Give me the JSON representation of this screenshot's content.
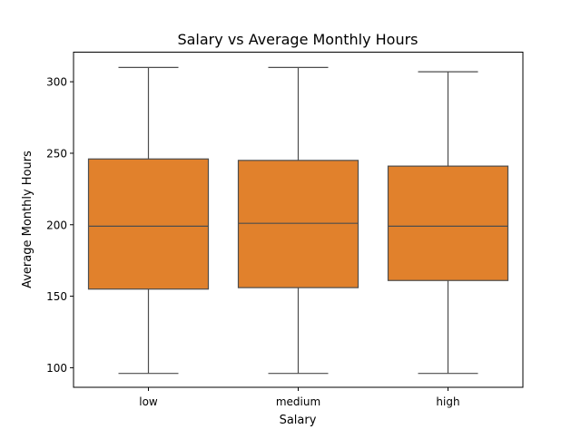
{
  "chart_data": {
    "type": "box",
    "title": "Salary vs Average Monthly Hours",
    "xlabel": "Salary",
    "ylabel": "Average Monthly Hours",
    "categories": [
      "low",
      "medium",
      "high"
    ],
    "ylim": [
      86.3,
      320.7
    ],
    "yticks": [
      100,
      150,
      200,
      250,
      300
    ],
    "grid": false,
    "box_color": "#e1812c",
    "line_color": "#4d4d4d",
    "boxes": [
      {
        "category": "low",
        "whislo": 96,
        "q1": 155,
        "med": 199,
        "q3": 246,
        "whishi": 310
      },
      {
        "category": "medium",
        "whislo": 96,
        "q1": 156,
        "med": 201,
        "q3": 245,
        "whishi": 310
      },
      {
        "category": "high",
        "whislo": 96,
        "q1": 161,
        "med": 199,
        "q3": 241,
        "whishi": 307
      }
    ]
  }
}
